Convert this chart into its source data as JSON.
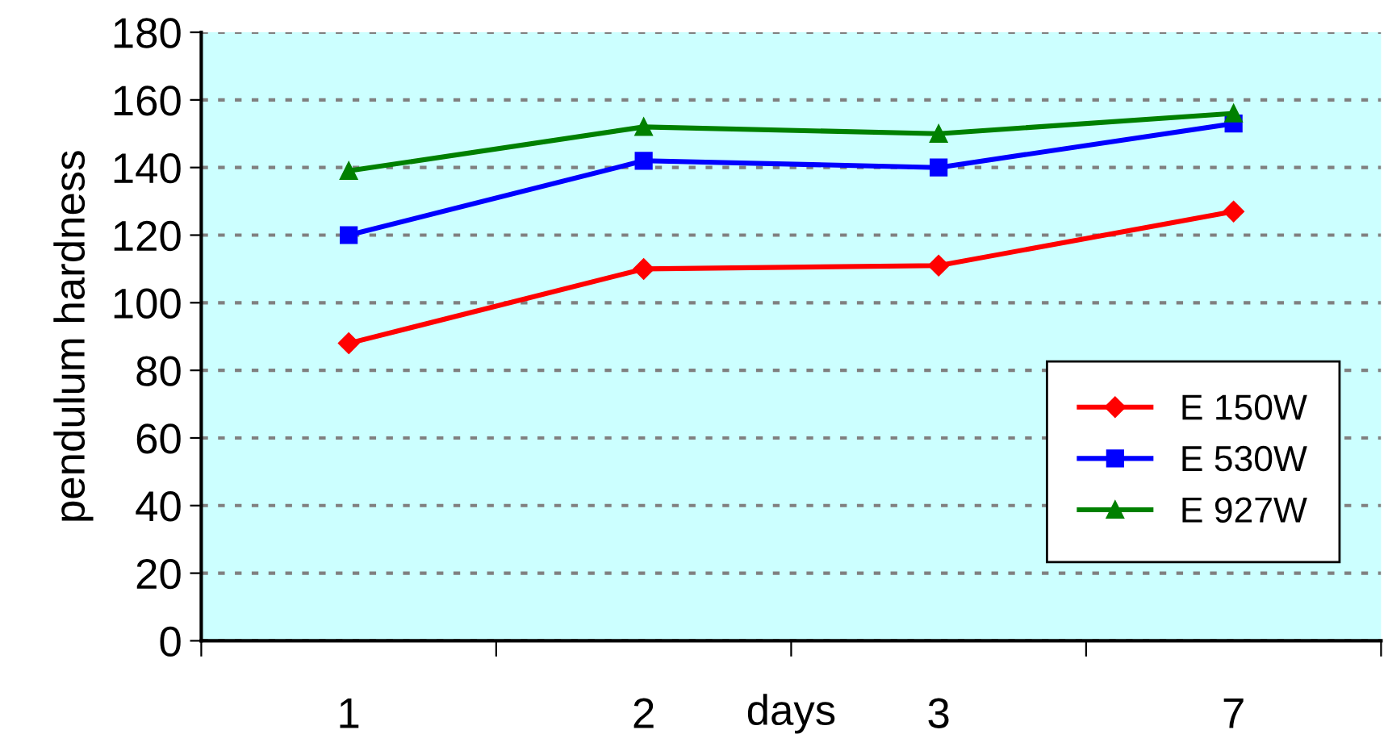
{
  "chart_data": {
    "type": "line",
    "xlabel": "days",
    "ylabel": "pendulum hardness",
    "categories": [
      "1",
      "2",
      "3",
      "7"
    ],
    "series": [
      {
        "name": "E 150W",
        "color": "#ff0000",
        "marker": "diamond",
        "values": [
          88,
          110,
          111,
          127
        ]
      },
      {
        "name": "E 530W",
        "color": "#0000ff",
        "marker": "square",
        "values": [
          120,
          142,
          140,
          153
        ]
      },
      {
        "name": "E 927W",
        "color": "#008000",
        "marker": "triangle",
        "values": [
          139,
          152,
          150,
          156
        ]
      }
    ],
    "ylim": [
      0,
      180
    ],
    "yticks": [
      0,
      20,
      40,
      60,
      80,
      100,
      120,
      140,
      160,
      180
    ],
    "grid": "y",
    "legend": "bottom right",
    "line_style": "solid"
  }
}
